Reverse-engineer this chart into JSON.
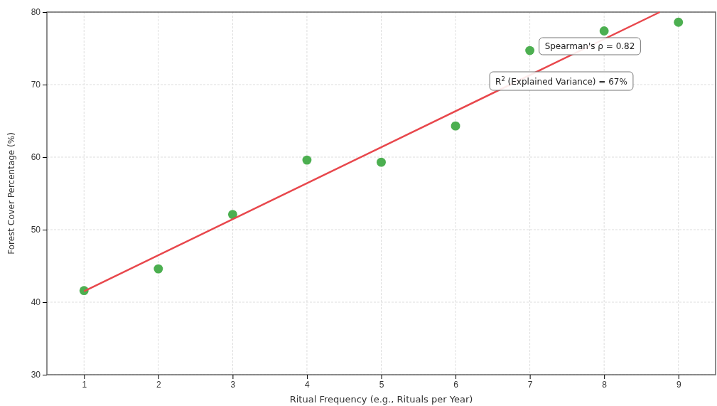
{
  "chart_data": {
    "type": "scatter",
    "xlabel": "Ritual Frequency (e.g., Rituals per Year)",
    "ylabel": "Forest Cover Percentage (%)",
    "xlim": [
      0.5,
      9.5
    ],
    "xticks": [
      1,
      2,
      3,
      4,
      5,
      6,
      7,
      8,
      9
    ],
    "ylim": [
      30,
      80
    ],
    "yticks": [
      30,
      40,
      50,
      60,
      70,
      80
    ],
    "grid": true,
    "marker": "circle",
    "series": [
      {
        "color": "#4caf50",
        "x": [
          1,
          2,
          3,
          4,
          5,
          6,
          7,
          8,
          9
        ],
        "values": [
          41.6,
          44.6,
          52.1,
          59.6,
          59.3,
          64.3,
          74.7,
          77.4,
          78.6
        ]
      },
      {
        "type": "line",
        "marker": "none",
        "color": "#e8474c",
        "x": [
          1,
          8.75
        ],
        "values": [
          41.5,
          80
        ]
      }
    ],
    "annotations": [
      "Spearman's ρ = 0.82",
      "R$^{2}$ (Explained Variance) = 67%"
    ]
  }
}
